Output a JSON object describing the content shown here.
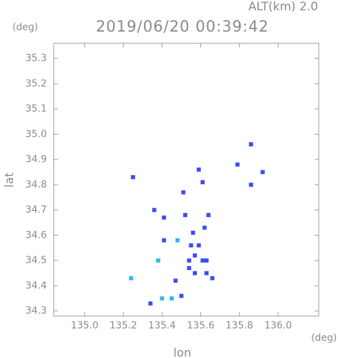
{
  "chart_data": {
    "type": "scatter",
    "title": "2019/06/20 00:39:42",
    "subtitle": "ALT(km) 2.0",
    "y_unit": "(deg)",
    "x_unit": "(deg)",
    "y_label": "lat",
    "x_label": "lon",
    "xlim": [
      134.84,
      136.21
    ],
    "ylim": [
      34.28,
      35.36
    ],
    "xticks": [
      {
        "value": 135,
        "label": "135.0"
      },
      135.2,
      135.4,
      135.6,
      135.8,
      {
        "value": 136,
        "label": "136.0"
      }
    ],
    "yticks": [
      34.3,
      34.4,
      34.5,
      34.6,
      34.7,
      34.8,
      34.9,
      {
        "value": 35,
        "label": "35.0"
      },
      35.1,
      35.2,
      35.3
    ],
    "series": [
      {
        "color": "#3a4ff0",
        "x": [
          135.86,
          135.79,
          135.92,
          135.86,
          135.25,
          135.59,
          135.61,
          135.51,
          135.36,
          135.41,
          135.52,
          135.64,
          135.62,
          135.56,
          135.41,
          135.55,
          135.59,
          135.54,
          135.57,
          135.61,
          135.63,
          135.54,
          135.57,
          135.63,
          135.66,
          135.47,
          135.34,
          135.5
        ],
        "values": [
          34.96,
          34.88,
          34.85,
          34.8,
          34.83,
          34.86,
          34.81,
          34.77,
          34.7,
          34.67,
          34.68,
          34.68,
          34.63,
          34.61,
          34.58,
          34.56,
          34.56,
          34.5,
          34.52,
          34.5,
          34.5,
          34.47,
          34.45,
          34.45,
          34.43,
          34.42,
          34.33,
          34.36
        ]
      },
      {
        "color": "#33b8ee",
        "x": [
          135.38,
          135.24,
          135.4,
          135.45,
          135.48
        ],
        "values": [
          34.5,
          34.43,
          34.35,
          34.35,
          34.58
        ]
      }
    ]
  }
}
